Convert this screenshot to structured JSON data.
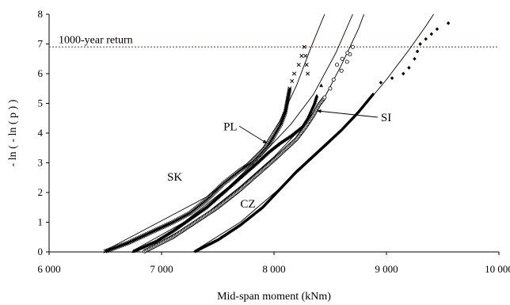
{
  "chart_data": {
    "type": "scatter",
    "title": "",
    "xlabel": "Mid-span moment (kNm)",
    "ylabel": "- ln ( - ln ( p ) )",
    "xlim": [
      6000,
      10000
    ],
    "ylim": [
      0,
      8
    ],
    "xticks": [
      6000,
      7000,
      8000,
      9000,
      10000
    ],
    "xtick_labels": [
      "6 000",
      "7 000",
      "8 000",
      "9 000",
      "10 000"
    ],
    "yticks": [
      0,
      1,
      2,
      3,
      4,
      5,
      6,
      7,
      8
    ],
    "ytick_labels": [
      "0",
      "1",
      "2",
      "3",
      "4",
      "5",
      "6",
      "7",
      "8"
    ],
    "grid": false,
    "reference_line": {
      "label": "1000-year return",
      "y": 6.9,
      "color": "#a0522d"
    },
    "series": [
      {
        "name": "SK",
        "marker": "cross",
        "points": [
          [
            6500,
            0.02
          ],
          [
            6700,
            0.3
          ],
          [
            6900,
            0.65
          ],
          [
            7100,
            1.0
          ],
          [
            7250,
            1.3
          ],
          [
            7400,
            1.75
          ],
          [
            7550,
            2.3
          ],
          [
            7700,
            2.75
          ],
          [
            7800,
            3.0
          ],
          [
            7880,
            3.3
          ],
          [
            7950,
            3.6
          ],
          [
            8000,
            3.9
          ],
          [
            8060,
            4.3
          ],
          [
            8100,
            4.7
          ],
          [
            8120,
            5.1
          ],
          [
            8140,
            5.5
          ],
          [
            8180,
            6.0
          ],
          [
            8220,
            6.3
          ],
          [
            8270,
            6.9
          ],
          [
            8300,
            6.0
          ]
        ],
        "fit": [
          [
            6500,
            0.05
          ],
          [
            7000,
            1.05
          ],
          [
            7400,
            1.85
          ],
          [
            7700,
            2.75
          ],
          [
            7900,
            3.5
          ],
          [
            8050,
            4.4
          ],
          [
            8200,
            5.6
          ],
          [
            8330,
            6.9
          ],
          [
            8450,
            8.0
          ]
        ]
      },
      {
        "name": "PL",
        "marker": "triangle",
        "points": [
          [
            6750,
            0.02
          ],
          [
            6950,
            0.35
          ],
          [
            7100,
            0.7
          ],
          [
            7250,
            1.1
          ],
          [
            7400,
            1.5
          ],
          [
            7550,
            2.0
          ],
          [
            7700,
            2.5
          ],
          [
            7850,
            3.0
          ],
          [
            7950,
            3.35
          ],
          [
            8050,
            3.65
          ],
          [
            8150,
            3.9
          ],
          [
            8250,
            4.2
          ],
          [
            8300,
            4.5
          ],
          [
            8330,
            4.75
          ],
          [
            8360,
            5.0
          ],
          [
            8380,
            5.25
          ],
          [
            8420,
            5.6
          ]
        ],
        "fit": [
          [
            6750,
            0.05
          ],
          [
            7200,
            1.0
          ],
          [
            7600,
            2.2
          ],
          [
            7900,
            3.3
          ],
          [
            8150,
            4.3
          ],
          [
            8350,
            5.3
          ],
          [
            8550,
            6.7
          ],
          [
            8700,
            8.0
          ]
        ]
      },
      {
        "name": "SI",
        "marker": "circle",
        "points": [
          [
            6850,
            0.02
          ],
          [
            7100,
            0.5
          ],
          [
            7300,
            1.0
          ],
          [
            7500,
            1.5
          ],
          [
            7700,
            2.1
          ],
          [
            7850,
            2.6
          ],
          [
            8000,
            3.1
          ],
          [
            8100,
            3.45
          ],
          [
            8200,
            3.8
          ],
          [
            8280,
            4.2
          ],
          [
            8350,
            4.6
          ],
          [
            8400,
            4.95
          ],
          [
            8450,
            5.2
          ],
          [
            8500,
            5.5
          ],
          [
            8530,
            5.8
          ],
          [
            8600,
            6.1
          ],
          [
            8650,
            6.4
          ],
          [
            8700,
            6.9
          ],
          [
            8560,
            6.3
          ]
        ],
        "fit": [
          [
            6850,
            0.05
          ],
          [
            7300,
            1.0
          ],
          [
            7700,
            2.2
          ],
          [
            8000,
            3.2
          ],
          [
            8250,
            4.2
          ],
          [
            8450,
            5.2
          ],
          [
            8600,
            6.3
          ],
          [
            8750,
            7.5
          ],
          [
            8800,
            8.0
          ]
        ]
      },
      {
        "name": "CZ",
        "marker": "diamond",
        "points": [
          [
            7300,
            0.02
          ],
          [
            7500,
            0.4
          ],
          [
            7700,
            0.9
          ],
          [
            7900,
            1.5
          ],
          [
            8050,
            2.1
          ],
          [
            8200,
            2.7
          ],
          [
            8400,
            3.4
          ],
          [
            8600,
            4.1
          ],
          [
            8750,
            4.7
          ],
          [
            8880,
            5.3
          ],
          [
            8950,
            5.7
          ],
          [
            9050,
            5.85
          ],
          [
            9150,
            6.0
          ],
          [
            9200,
            6.2
          ],
          [
            9250,
            6.5
          ],
          [
            9300,
            7.0
          ],
          [
            9450,
            7.5
          ],
          [
            9550,
            7.7
          ]
        ],
        "fit": [
          [
            7300,
            0.05
          ],
          [
            7700,
            1.0
          ],
          [
            8100,
            2.3
          ],
          [
            8500,
            3.7
          ],
          [
            8800,
            4.9
          ],
          [
            9000,
            5.8
          ],
          [
            9200,
            6.8
          ],
          [
            9350,
            7.6
          ],
          [
            9420,
            8.0
          ]
        ]
      }
    ],
    "annotations": [
      {
        "text": "SK",
        "x": 7050,
        "y": 2.4
      },
      {
        "text": "PL",
        "x": 7550,
        "y": 4.1,
        "arrow_to": [
          7940,
          3.65
        ]
      },
      {
        "text": "SI",
        "x": 8950,
        "y": 4.4,
        "arrow_to": [
          8380,
          4.75
        ]
      },
      {
        "text": "CZ",
        "x": 7700,
        "y": 1.5
      }
    ]
  }
}
